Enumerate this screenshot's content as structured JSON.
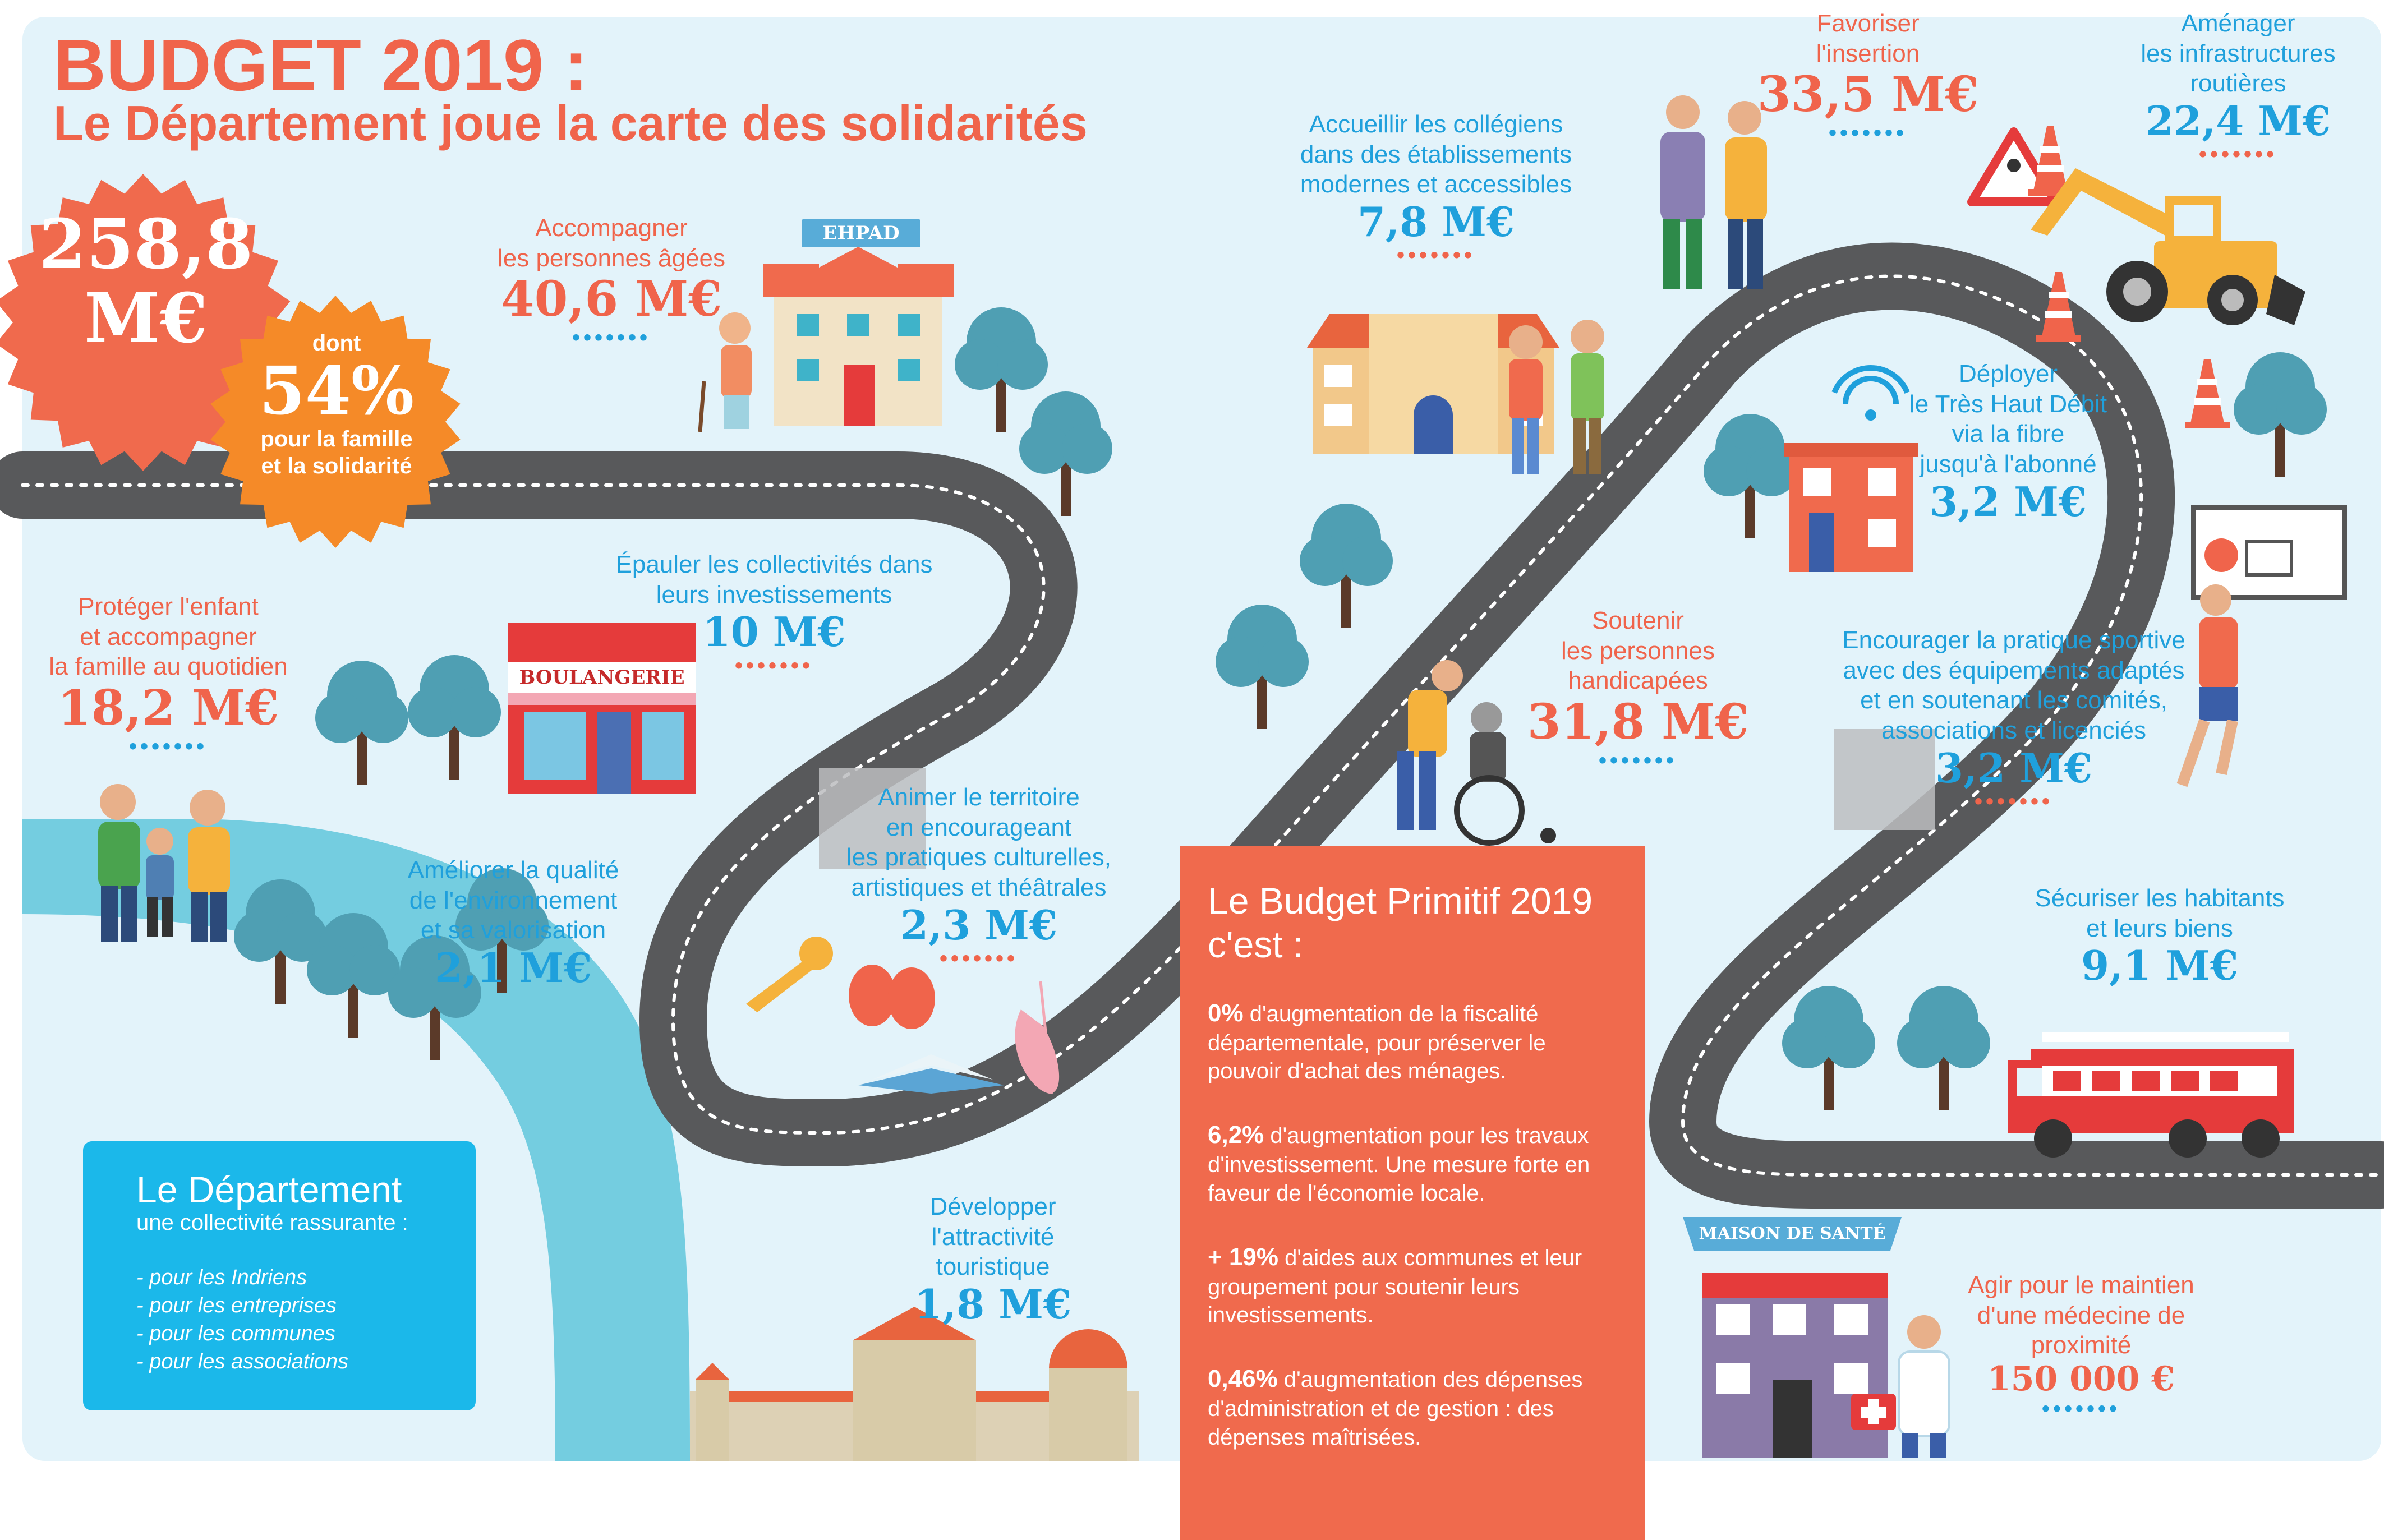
{
  "title": {
    "line1": "BUDGET 2019 :",
    "line2": "Le Département joue la carte des solidarités"
  },
  "total": {
    "amount_line1": "258,8",
    "amount_line2": "M€"
  },
  "share": {
    "prefix": "dont",
    "percent": "54%",
    "suffix_line1": "pour la famille",
    "suffix_line2": "et la solidarité"
  },
  "signs": {
    "ehpad": "EHPAD",
    "bakery": "BOULANGERIE",
    "health": "MAISON DE SANTÉ"
  },
  "items": [
    {
      "id": "personnes-agees",
      "label": [
        "Accompagner",
        "les personnes âgées"
      ],
      "amount": "40,6 M€",
      "color": "#f0644b"
    },
    {
      "id": "enfance-famille",
      "label": [
        "Protéger l'enfant",
        "et accompagner",
        "la famille au quotidien"
      ],
      "amount": "18,2 M€",
      "color": "#f0644b"
    },
    {
      "id": "collectivites",
      "label": [
        "Épauler les collectivités dans",
        "leurs investissements"
      ],
      "amount": "10 M€",
      "color": "#1fa0dc"
    },
    {
      "id": "environnement",
      "label": [
        "Améliorer la qualité",
        "de l'environnement",
        "et sa valorisation"
      ],
      "amount": "2,1 M€",
      "color": "#1fa0dc"
    },
    {
      "id": "culture",
      "label": [
        "Animer le territoire",
        "en encourageant",
        "les pratiques culturelles,",
        "artistiques et théâtrales"
      ],
      "amount": "2,3 M€",
      "color": "#1fa0dc"
    },
    {
      "id": "tourisme",
      "label": [
        "Développer",
        "l'attractivité",
        "touristique"
      ],
      "amount": "1,8 M€",
      "color": "#1fa0dc"
    },
    {
      "id": "colleges",
      "label": [
        "Accueillir les collégiens",
        "dans des établissements",
        "modernes et accessibles"
      ],
      "amount": "7,8 M€",
      "color": "#1fa0dc"
    },
    {
      "id": "handicap",
      "label": [
        "Soutenir",
        "les personnes",
        "handicapées"
      ],
      "amount": "31,8 M€",
      "color": "#f0644b"
    },
    {
      "id": "insertion",
      "label": [
        "Favoriser",
        "l'insertion"
      ],
      "amount": "33,5 M€",
      "color": "#f0644b"
    },
    {
      "id": "routes",
      "label": [
        "Aménager",
        "les infrastructures",
        "routières"
      ],
      "amount": "22,4 M€",
      "color": "#1fa0dc"
    },
    {
      "id": "haut-debit",
      "label": [
        "Déployer",
        "le Très Haut Débit",
        "via la fibre",
        "jusqu'à l'abonné"
      ],
      "amount": "3,2 M€",
      "color": "#1fa0dc"
    },
    {
      "id": "sport",
      "label": [
        "Encourager la pratique sportive",
        "avec des équipements adaptés",
        "et en soutenant les comités,",
        "associations et licenciés"
      ],
      "amount": "3,2 M€",
      "color": "#1fa0dc"
    },
    {
      "id": "securite",
      "label": [
        "Sécuriser les habitants",
        "et leurs biens"
      ],
      "amount": "9,1 M€",
      "color": "#1fa0dc"
    },
    {
      "id": "medecine",
      "label": [
        "Agir pour le maintien",
        "d'une médecine de",
        "proximité"
      ],
      "amount": "150 000 €",
      "color": "#f0644b"
    }
  ],
  "departement_box": {
    "heading": "Le Département",
    "subheading": "une collectivité rassurante :",
    "list": [
      "- pour les Indriens",
      "- pour les entreprises",
      "- pour les communes",
      "- pour les associations"
    ]
  },
  "budget_primitif": {
    "heading": "Le Budget Primitif 2019 c'est :",
    "points": [
      {
        "figure": "0%",
        "text": " d'augmentation de la fiscalité départementale, pour préserver le pouvoir d'achat des ménages."
      },
      {
        "figure": "6,2%",
        "text": " d'augmentation pour les travaux d'investissement. Une mesure forte en faveur de l'économie locale."
      },
      {
        "figure": "+ 19%",
        "text": " d'aides aux communes et leur groupement pour soutenir leurs investissements."
      },
      {
        "figure": "0,46%",
        "text": " d'augmentation des dépenses d'administration et de gestion : des dépenses maîtrisées."
      }
    ]
  },
  "palette": {
    "background": "#e3f3fa",
    "road": "#58595b",
    "orange": "#f0644b",
    "blue": "#1fa0dc",
    "river": "#74cde0",
    "tree": "#4f9fb3"
  }
}
